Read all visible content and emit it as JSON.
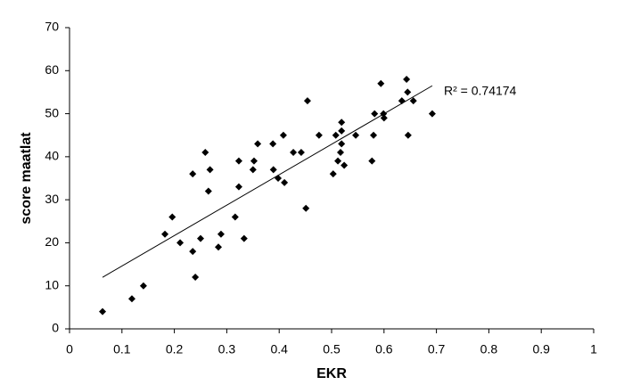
{
  "chart_data": {
    "type": "scatter",
    "x_label": "EKR",
    "y_label": "score maatlat",
    "annotation": "R² = 0.74174",
    "trendline": true,
    "color": "#000000",
    "x": [
      0.063,
      0.119,
      0.141,
      0.182,
      0.196,
      0.211,
      0.235,
      0.235,
      0.24,
      0.25,
      0.259,
      0.265,
      0.268,
      0.284,
      0.289,
      0.316,
      0.323,
      0.323,
      0.333,
      0.35,
      0.352,
      0.359,
      0.388,
      0.389,
      0.398,
      0.408,
      0.41,
      0.427,
      0.442,
      0.451,
      0.454,
      0.476,
      0.503,
      0.508,
      0.512,
      0.517,
      0.519,
      0.519,
      0.519,
      0.524,
      0.546,
      0.577,
      0.58,
      0.582,
      0.594,
      0.599,
      0.6,
      0.634,
      0.643,
      0.645,
      0.646,
      0.656,
      0.692
    ],
    "values": [
      4,
      7,
      10,
      22,
      26,
      20,
      18,
      36,
      12,
      21,
      41,
      32,
      37,
      19,
      22,
      26,
      33,
      39,
      21,
      37,
      39,
      43,
      43,
      37,
      35,
      45,
      34,
      41,
      41,
      28,
      53,
      45,
      36,
      45,
      39,
      41,
      48,
      46,
      43,
      38,
      45,
      39,
      45,
      50,
      57,
      50,
      49,
      53,
      58,
      55,
      45,
      53,
      50
    ],
    "xlim": [
      0,
      1
    ],
    "xticks": [
      0,
      0.1,
      0.2,
      0.3,
      0.4,
      0.5,
      0.6,
      0.7,
      0.8,
      0.9,
      1
    ],
    "ylim": [
      0,
      70
    ],
    "yticks": [
      0,
      10,
      20,
      30,
      40,
      50,
      60,
      70
    ]
  }
}
